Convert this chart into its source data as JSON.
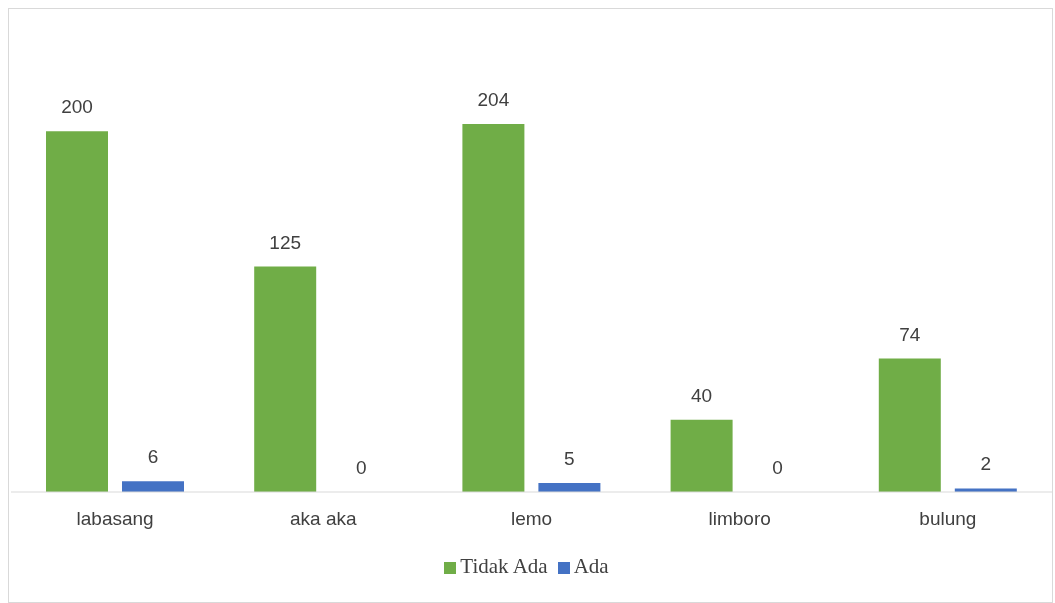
{
  "chart_data": {
    "type": "bar",
    "categories": [
      "labasang",
      "aka aka",
      "lemo",
      "limboro",
      "bulung"
    ],
    "series": [
      {
        "name": "Tidak Ada",
        "color": "#70ad47",
        "values": [
          200,
          125,
          204,
          40,
          74
        ]
      },
      {
        "name": "Ada",
        "color": "#4472c4",
        "values": [
          6,
          0,
          5,
          0,
          2
        ]
      }
    ],
    "data_labels": true,
    "grid": false,
    "legend": "bottom"
  }
}
